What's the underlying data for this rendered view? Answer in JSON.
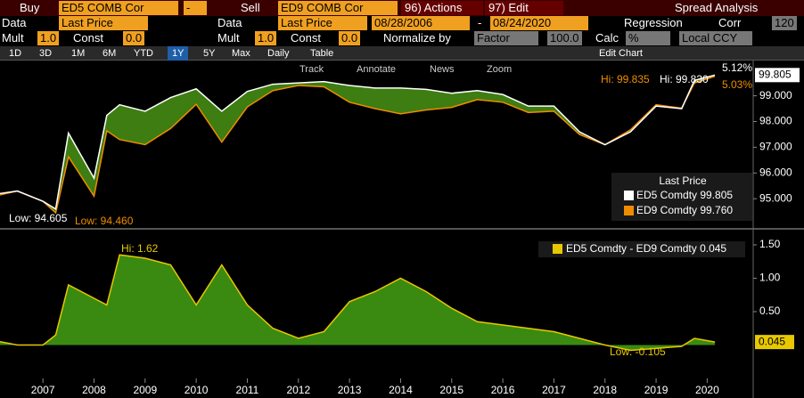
{
  "toolbar": {
    "row1": [
      "Buy",
      "ED5 COMB Cor",
      "-",
      "Sell",
      "ED9 COMB Cor",
      "96) Actions",
      "97) Edit",
      "Spread Analysis"
    ],
    "row2": [
      "Data",
      "Last Price",
      "Data",
      "Last Price",
      "08/28/2006",
      "-",
      "08/24/2020",
      "Regression",
      "Corr",
      "120"
    ],
    "row3": [
      "Mult",
      "1.0",
      "Const",
      "0.0",
      "Mult",
      "1.0",
      "Const",
      "0.0",
      "Normalize by",
      "Factor",
      "100.0",
      "Calc",
      "%",
      "Local CCY"
    ],
    "row4": [
      "1D",
      "3D",
      "1M",
      "6M",
      "YTD",
      "1Y",
      "5Y",
      "Max",
      "Daily",
      "Table",
      "Edit Chart"
    ],
    "row5": [
      "Track",
      "Annotate",
      "News",
      "Zoom"
    ]
  },
  "chart_data": [
    {
      "type": "line",
      "legend_title": "Last Price",
      "x": [
        2006.66,
        2007,
        2007.5,
        2007.75,
        2008,
        2008.5,
        2008.75,
        2009,
        2009.5,
        2010,
        2010.5,
        2011,
        2011.5,
        2012,
        2012.5,
        2013,
        2013.5,
        2014,
        2014.5,
        2015,
        2015.5,
        2016,
        2016.5,
        2017,
        2017.5,
        2018,
        2018.5,
        2019,
        2019.5,
        2020,
        2020.25,
        2020.65
      ],
      "xlim": [
        2006.66,
        2021.4
      ],
      "ylim": [
        93.9,
        100.3
      ],
      "yticks": [
        {
          "value": 95,
          "label": "95.000"
        },
        {
          "value": 96,
          "label": "96.000"
        },
        {
          "value": 97,
          "label": "97.000"
        },
        {
          "value": 98,
          "label": "98.000"
        },
        {
          "value": 99,
          "label": "99.000"
        }
      ],
      "series": [
        {
          "name": "ED5 Comdty",
          "color": "#ffffff",
          "legend_value": "99.805",
          "values": [
            95.2,
            95.3,
            94.9,
            94.6,
            97.55,
            95.8,
            98.24,
            98.65,
            98.4,
            98.93,
            99.27,
            98.4,
            99.17,
            99.45,
            99.5,
            99.55,
            99.4,
            99.3,
            99.3,
            99.25,
            99.1,
            99.2,
            99.05,
            98.6,
            98.6,
            97.6,
            97.1,
            97.6,
            98.6,
            98.5,
            99.6,
            99.805
          ]
        },
        {
          "name": "ED9 Comdty",
          "color": "#f08c00",
          "legend_value": "99.760",
          "values": [
            95.15,
            95.3,
            94.9,
            94.45,
            96.63,
            95.1,
            97.64,
            97.3,
            97.1,
            97.73,
            98.67,
            97.2,
            98.57,
            99.2,
            99.4,
            99.35,
            98.75,
            98.5,
            98.3,
            98.45,
            98.55,
            98.85,
            98.75,
            98.35,
            98.4,
            97.5,
            97.1,
            97.68,
            98.65,
            98.52,
            99.5,
            99.76
          ]
        }
      ],
      "fill_color": "#3d7d12",
      "annotations": [
        "Low: 94.605",
        "Low: 94.460",
        "Hi: 99.835",
        "Hi: 99.830",
        "5.12%",
        "5.03%"
      ]
    },
    {
      "type": "area",
      "x": [
        2006.66,
        2007,
        2007.5,
        2007.75,
        2008,
        2008.5,
        2008.75,
        2009,
        2009.5,
        2010,
        2010.5,
        2011,
        2011.5,
        2012,
        2012.5,
        2013,
        2013.5,
        2014,
        2014.5,
        2015,
        2015.5,
        2016,
        2016.5,
        2017,
        2017.5,
        2018,
        2018.5,
        2019,
        2019.5,
        2020,
        2020.25,
        2020.65
      ],
      "xlim": [
        2006.66,
        2021.4
      ],
      "ylim": [
        -0.5,
        1.7
      ],
      "yticks": [
        {
          "value": 0.5,
          "label": "0.50"
        },
        {
          "value": 1,
          "label": "1.00"
        },
        {
          "value": 1.5,
          "label": "1.50"
        }
      ],
      "xticks": [
        {
          "value": 2007.5,
          "label": "2007"
        },
        {
          "value": 2008.5,
          "label": "2008"
        },
        {
          "value": 2009.5,
          "label": "2009"
        },
        {
          "value": 2010.5,
          "label": "2010"
        },
        {
          "value": 2011.5,
          "label": "2011"
        },
        {
          "value": 2012.5,
          "label": "2012"
        },
        {
          "value": 2013.5,
          "label": "2013"
        },
        {
          "value": 2014.5,
          "label": "2014"
        },
        {
          "value": 2015.5,
          "label": "2015"
        },
        {
          "value": 2016.5,
          "label": "2016"
        },
        {
          "value": 2017.5,
          "label": "2017"
        },
        {
          "value": 2018.5,
          "label": "2018"
        },
        {
          "value": 2019.5,
          "label": "2019"
        },
        {
          "value": 2020.5,
          "label": "2020"
        }
      ],
      "series": [
        {
          "name": "ED5 Comdty - ED9 Comdty",
          "color": "#e8c800",
          "fill": "#3a8a12",
          "legend_value": "0.045",
          "values": [
            0.05,
            0,
            0,
            0.15,
            0.9,
            0.7,
            0.6,
            1.35,
            1.3,
            1.2,
            0.6,
            1.2,
            0.6,
            0.25,
            0.1,
            0.2,
            0.65,
            0.8,
            1.0,
            0.8,
            0.55,
            0.35,
            0.3,
            0.25,
            0.2,
            0.1,
            0,
            -0.08,
            -0.05,
            -0.02,
            0.1,
            0.045
          ]
        }
      ],
      "annotations": [
        "Hi: 1.62",
        "Low: -0.105"
      ]
    }
  ]
}
